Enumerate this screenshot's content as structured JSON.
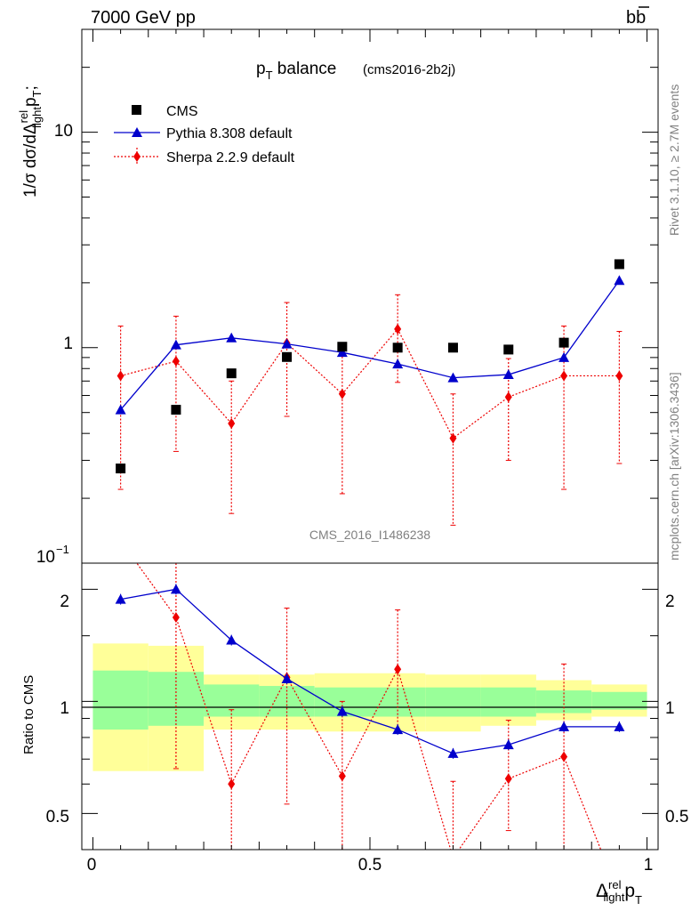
{
  "header": {
    "energy_label": "7000 GeV pp",
    "process_label": "bb",
    "title_main": "p",
    "title_sub": "T",
    "title_rest": " balance",
    "title_tag": "(cms2016-2b2j)",
    "watermark": "CMS_2016_I1486238",
    "side_rivet": "Rivet 3.1.10, ≥ 2.7M events",
    "side_mcplots": "mcplots.cern.ch [arXiv:1306.3436]"
  },
  "axes": {
    "ylabel_main": "1/σ dσ/dΔ",
    "ylabel_rel": "rel",
    "ylabel_light": "light",
    "ylabel_p": "p",
    "ylabel_T": "T",
    "ylabel_semicolon": ";",
    "ylabel_ratio": "Ratio to CMS",
    "xlabel_delta": "Δ",
    "xlabel_rel": "rel",
    "xlabel_light": "light",
    "xlabel_p": "p",
    "xlabel_T": "T",
    "top_ticks": [
      "10",
      "1"
    ],
    "top_tick_bottom_base": "10",
    "top_tick_bottom_exp": "−1",
    "ratio_ticks": [
      "2",
      "1",
      "0.5"
    ],
    "x_ticks": [
      "0",
      "0.5",
      "1"
    ]
  },
  "chart_data": {
    "type": "scatter",
    "x": [
      0.05,
      0.15,
      0.25,
      0.35,
      0.45,
      0.55,
      0.65,
      0.75,
      0.85,
      0.95
    ],
    "xlim": [
      -0.02,
      1.02
    ],
    "ylim": [
      0.1,
      30
    ],
    "yscale": "log",
    "legend_position": "top-left",
    "series": [
      {
        "name": "CMS",
        "color": "#000000",
        "marker": "square",
        "values": [
          0.275,
          0.515,
          0.76,
          0.905,
          1.01,
          1.0,
          1.0,
          0.98,
          1.055,
          2.44
        ]
      },
      {
        "name": "Pythia 8.308 default",
        "color": "#0000cc",
        "marker": "triangle",
        "line": "solid",
        "values": [
          0.515,
          1.03,
          1.11,
          1.04,
          0.95,
          0.84,
          0.725,
          0.75,
          0.9,
          2.05
        ]
      },
      {
        "name": "Sherpa 2.2.9 default",
        "color": "#ee0000",
        "marker": "diamond",
        "line": "dotted",
        "values": [
          0.74,
          0.865,
          0.445,
          1.05,
          0.61,
          1.22,
          0.38,
          0.59,
          0.74,
          0.74
        ],
        "err_low": [
          0.22,
          0.33,
          0.17,
          0.48,
          0.21,
          0.69,
          0.15,
          0.3,
          0.22,
          0.29
        ],
        "err_high": [
          1.26,
          1.4,
          0.7,
          1.62,
          1.02,
          1.76,
          0.61,
          0.89,
          1.26,
          1.19
        ]
      }
    ],
    "ratio": {
      "ylabel": "Ratio to CMS",
      "ylim": [
        0.4,
        2.35
      ],
      "yscale": "log",
      "bins": [
        [
          0.0,
          0.1
        ],
        [
          0.1,
          0.2
        ],
        [
          0.2,
          0.3
        ],
        [
          0.3,
          0.4
        ],
        [
          0.4,
          0.5
        ],
        [
          0.5,
          0.6
        ],
        [
          0.6,
          0.7
        ],
        [
          0.7,
          0.8
        ],
        [
          0.8,
          0.9
        ],
        [
          0.9,
          1.0
        ]
      ],
      "band_yellow": [
        [
          0.65,
          1.43
        ],
        [
          0.65,
          1.41
        ],
        [
          0.84,
          1.18
        ],
        [
          0.84,
          1.18
        ],
        [
          0.83,
          1.19
        ],
        [
          0.83,
          1.19
        ],
        [
          0.83,
          1.18
        ],
        [
          0.86,
          1.18
        ],
        [
          0.89,
          1.14
        ],
        [
          0.91,
          1.11
        ]
      ],
      "band_green": [
        [
          0.84,
          1.21
        ],
        [
          0.86,
          1.2
        ],
        [
          0.91,
          1.11
        ],
        [
          0.91,
          1.1
        ],
        [
          0.91,
          1.09
        ],
        [
          0.91,
          1.09
        ],
        [
          0.91,
          1.09
        ],
        [
          0.91,
          1.09
        ],
        [
          0.93,
          1.07
        ],
        [
          0.95,
          1.06
        ]
      ],
      "pythia": [
        1.88,
        2.0,
        1.46,
        1.15,
        0.94,
        0.84,
        0.725,
        0.765,
        0.855,
        0.855
      ],
      "sherpa": [
        2.7,
        1.68,
        0.6,
        1.16,
        0.63,
        1.22,
        0.38,
        0.62,
        0.71,
        0.3
      ],
      "sherpa_err_low": [
        null,
        0.66,
        0.3,
        0.53,
        0.25,
        0.84,
        0.15,
        0.45,
        0.3,
        null
      ],
      "sherpa_err_high": [
        null,
        2.7,
        0.95,
        1.78,
        1.0,
        1.76,
        0.61,
        0.89,
        1.26,
        null
      ]
    }
  }
}
